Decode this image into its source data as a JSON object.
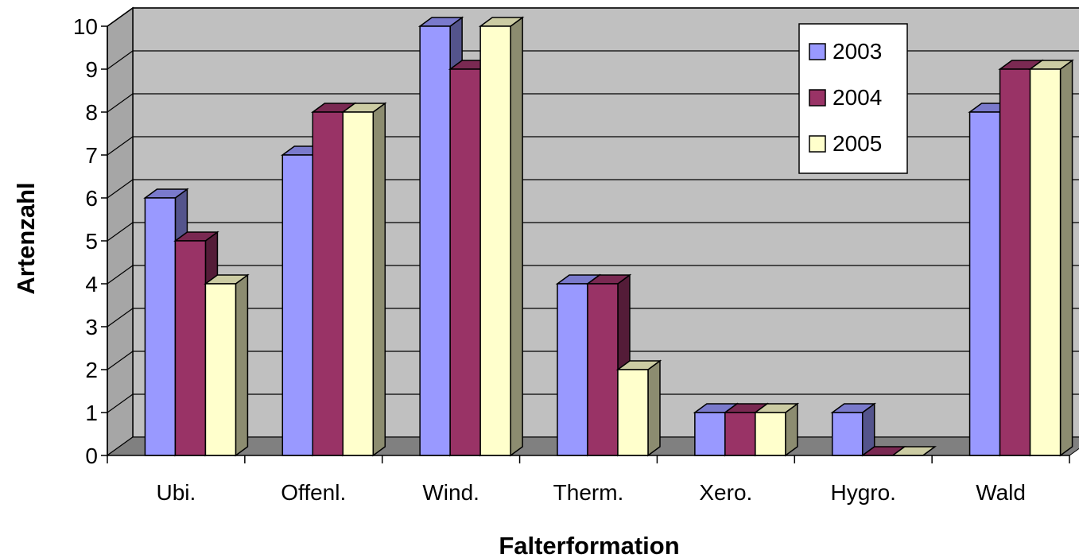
{
  "chart_data": {
    "type": "bar",
    "title": "",
    "xlabel": "Falterformation",
    "ylabel": "Artenzahl",
    "ylim": [
      0,
      10
    ],
    "yticks": [
      0,
      1,
      2,
      3,
      4,
      5,
      6,
      7,
      8,
      9,
      10
    ],
    "categories": [
      "Ubi.",
      "Offenl.",
      "Wind.",
      "Therm.",
      "Xero.",
      "Hygro.",
      "Wald"
    ],
    "series": [
      {
        "name": "2003",
        "values": [
          6,
          7,
          10,
          4,
          1,
          1,
          8
        ],
        "color": "#9999ff"
      },
      {
        "name": "2004",
        "values": [
          5,
          8,
          9,
          4,
          1,
          0,
          9
        ],
        "color": "#993366"
      },
      {
        "name": "2005",
        "values": [
          4,
          8,
          10,
          2,
          1,
          0,
          9
        ],
        "color": "#ffffcc"
      }
    ],
    "grid": true,
    "legend_position": "top-right",
    "style": "3d-clustered-column",
    "wall_color": "#c0c0c0",
    "floor_color": "#808080"
  }
}
